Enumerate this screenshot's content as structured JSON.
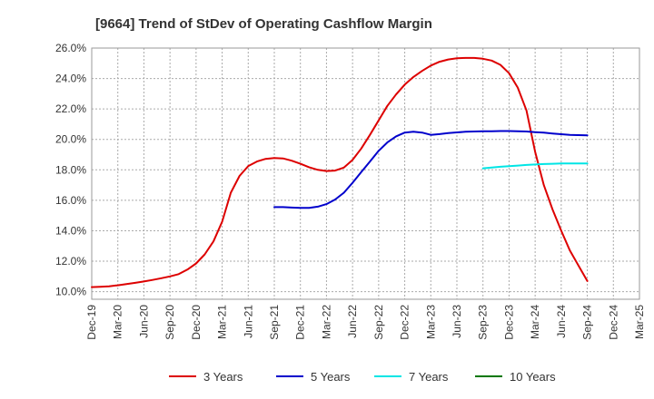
{
  "chart_data": {
    "type": "line",
    "title": "[9664]  Trend of StDev of Operating Cashflow Margin",
    "xlabel": "",
    "ylabel": "",
    "ylim": [
      9.5,
      26.0
    ],
    "y_ticks": [
      10.0,
      12.0,
      14.0,
      16.0,
      18.0,
      20.0,
      22.0,
      24.0,
      26.0
    ],
    "y_tick_format": "percent_1dp",
    "x_tick_labels": [
      "Dec-19",
      "Mar-20",
      "Jun-20",
      "Sep-20",
      "Dec-20",
      "Mar-21",
      "Jun-21",
      "Sep-21",
      "Dec-21",
      "Mar-22",
      "Jun-22",
      "Sep-22",
      "Dec-22",
      "Mar-23",
      "Jun-23",
      "Sep-23",
      "Dec-23",
      "Mar-24",
      "Jun-24",
      "Sep-24",
      "Dec-24",
      "Mar-25"
    ],
    "grid": true,
    "legend_position": "bottom",
    "series": [
      {
        "name": "3 Years",
        "color": "#dd0000",
        "start_index": 0,
        "values": [
          10.3,
          10.32,
          10.35,
          10.42,
          10.5,
          10.58,
          10.67,
          10.77,
          10.88,
          11.0,
          11.15,
          11.45,
          11.85,
          12.45,
          13.3,
          14.6,
          16.5,
          17.6,
          18.25,
          18.55,
          18.72,
          18.78,
          18.75,
          18.6,
          18.4,
          18.17,
          18.0,
          17.92,
          17.95,
          18.15,
          18.65,
          19.4,
          20.3,
          21.25,
          22.2,
          22.95,
          23.6,
          24.1,
          24.5,
          24.85,
          25.1,
          25.25,
          25.33,
          25.35,
          25.35,
          25.3,
          25.18,
          24.9,
          24.35,
          23.4,
          21.9,
          19.2,
          17.0,
          15.4,
          14.0,
          12.7,
          11.7,
          10.7
        ]
      },
      {
        "name": "5 Years",
        "color": "#0000cc",
        "start_index": 21,
        "values": [
          15.55,
          15.55,
          15.52,
          15.5,
          15.5,
          15.58,
          15.75,
          16.05,
          16.5,
          17.15,
          17.85,
          18.55,
          19.25,
          19.8,
          20.2,
          20.45,
          20.5,
          20.45,
          20.3,
          20.35,
          20.42,
          20.46,
          20.5,
          20.52,
          20.53,
          20.54,
          20.55,
          20.55,
          20.54,
          20.52,
          20.48,
          20.44,
          20.39,
          20.34,
          20.3,
          20.28,
          20.27
        ]
      },
      {
        "name": "7 Years",
        "color": "#00e5e5",
        "start_index": 45,
        "values": [
          18.1,
          18.15,
          18.2,
          18.24,
          18.28,
          18.32,
          18.35,
          18.38,
          18.4,
          18.42,
          18.42,
          18.42,
          18.42
        ]
      },
      {
        "name": "10 Years",
        "color": "#007700",
        "start_index": 0,
        "values": []
      }
    ]
  }
}
